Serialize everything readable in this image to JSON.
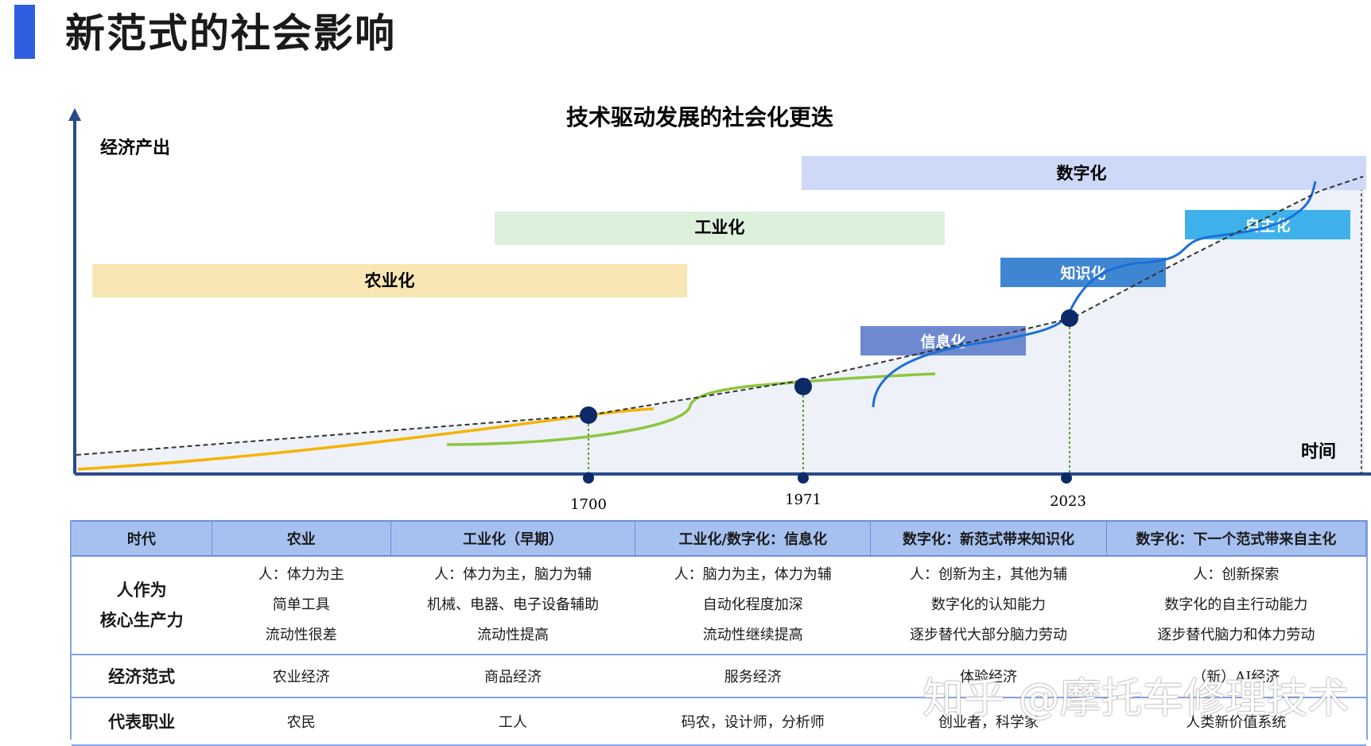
{
  "page_title": "新范式的社会影响",
  "diagram": {
    "title": "技术驱动发展的社会化更迭",
    "y_axis_label": "经济产出",
    "x_axis_label": "时间",
    "bands": [
      {
        "id": "agri",
        "label": "农业化",
        "color": "#f8e7b5"
      },
      {
        "id": "indu",
        "label": "工业化",
        "color": "#dcf0dc"
      },
      {
        "id": "digi",
        "label": "数字化",
        "color": "#ced8f7"
      }
    ],
    "stages": [
      {
        "id": "info",
        "label": "信息化",
        "color": "#6d8ad1"
      },
      {
        "id": "know",
        "label": "知识化",
        "color": "#3e86d2"
      },
      {
        "id": "auto",
        "label": "自主化",
        "color": "#3fb1ea"
      }
    ],
    "milestones": [
      "1700",
      "1971",
      "2023"
    ],
    "colors": {
      "agri_curve": "#f4b400",
      "indu_curve": "#8cc63f",
      "digi_curve": "#1a6fd6",
      "axis": "#2a4a8a",
      "node": "#0d2a66"
    }
  },
  "table": {
    "headers": [
      "时代",
      "农业",
      "工业化（早期）",
      "工业化/数字化：信息化",
      "数字化：新范式带来知识化",
      "数字化：下一个范式带来自主化"
    ],
    "rows": [
      {
        "label_lines": [
          "人作为",
          "核心生产力"
        ],
        "cells": [
          [
            "人：体力为主",
            "简单工具",
            "流动性很差"
          ],
          [
            "人：体力为主，脑力为辅",
            "机械、电器、电子设备辅助",
            "流动性提高"
          ],
          [
            "人：脑力为主，体力为辅",
            "自动化程度加深",
            "流动性继续提高"
          ],
          [
            "人：创新为主，其他为辅",
            "数字化的认知能力",
            "逐步替代大部分脑力劳动"
          ],
          [
            "人：创新探索",
            "数字化的自主行动能力",
            "逐步替代脑力和体力劳动"
          ]
        ]
      },
      {
        "label_lines": [
          "经济范式"
        ],
        "cells": [
          [
            "农业经济"
          ],
          [
            "商品经济"
          ],
          [
            "服务经济"
          ],
          [
            "体验经济"
          ],
          [
            "（新）AI经济"
          ]
        ]
      },
      {
        "label_lines": [
          "代表职业"
        ],
        "cells": [
          [
            "农民"
          ],
          [
            "工人"
          ],
          [
            "码农，设计师，分析师"
          ],
          [
            "创业者，科学家"
          ],
          [
            "人类新价值系统"
          ]
        ]
      }
    ]
  },
  "watermark": "知乎 @摩托车修理技术"
}
